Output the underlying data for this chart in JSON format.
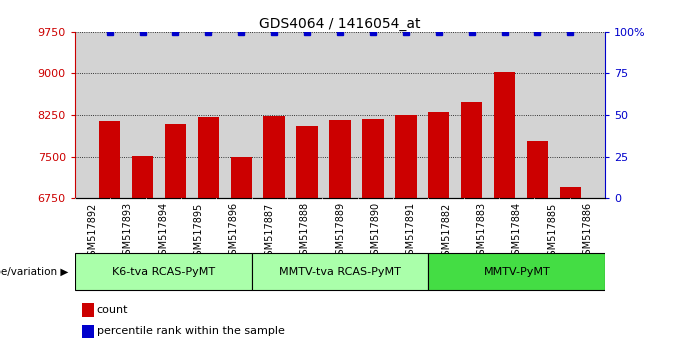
{
  "title": "GDS4064 / 1416054_at",
  "samples": [
    "GSM517892",
    "GSM517893",
    "GSM517894",
    "GSM517895",
    "GSM517896",
    "GSM517887",
    "GSM517888",
    "GSM517889",
    "GSM517890",
    "GSM517891",
    "GSM517882",
    "GSM517883",
    "GSM517884",
    "GSM517885",
    "GSM517886"
  ],
  "counts": [
    8150,
    7510,
    8080,
    8220,
    7490,
    8230,
    8060,
    8160,
    8180,
    8250,
    8300,
    8480,
    9020,
    7780,
    6960
  ],
  "bar_color": "#cc0000",
  "percentile_color": "#0000cc",
  "groups": [
    {
      "label": "K6-tva RCAS-PyMT",
      "start": 0,
      "end": 5,
      "color": "#aaffaa"
    },
    {
      "label": "MMTV-tva RCAS-PyMT",
      "start": 5,
      "end": 10,
      "color": "#aaffaa"
    },
    {
      "label": "MMTV-PyMT",
      "start": 10,
      "end": 15,
      "color": "#44dd44"
    }
  ],
  "ylim_left": [
    6750,
    9750
  ],
  "yticks_left": [
    6750,
    7500,
    8250,
    9000,
    9750
  ],
  "ylim_right": [
    0,
    100
  ],
  "yticks_right": [
    0,
    25,
    50,
    75,
    100
  ],
  "plot_bg": "#d3d3d3",
  "xticklabel_bg": "#c0c0c0",
  "genotype_label": "genotype/variation",
  "legend_count": "count",
  "legend_pct": "percentile rank within the sample"
}
